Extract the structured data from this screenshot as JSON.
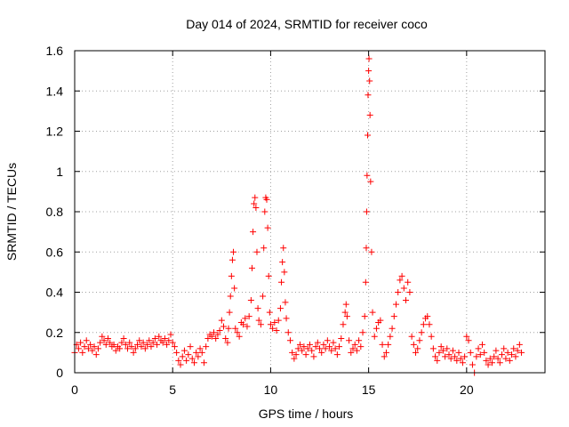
{
  "chart_data": {
    "type": "scatter",
    "title": "Day 014 of 2024, SRMTID for receiver coco",
    "xlabel": "GPS time / hours",
    "ylabel": "SRMTID / TECUs",
    "xlim": [
      0,
      24
    ],
    "ylim": [
      0,
      1.6
    ],
    "xticks": [
      0,
      5,
      10,
      15,
      20
    ],
    "yticks": [
      0,
      0.2,
      0.4,
      0.6,
      0.8,
      1,
      1.2,
      1.4,
      1.6
    ],
    "xtick_labels": [
      "0",
      "5",
      "10",
      "15",
      "20"
    ],
    "ytick_labels": [
      "0",
      "0.2",
      "0.4",
      "0.6",
      "0.8",
      "1",
      "1.2",
      "1.4",
      "1.6"
    ],
    "grid": true,
    "marker": "+",
    "color": "#ff0000",
    "series": [
      {
        "name": "SRMTID",
        "points": [
          [
            0.0,
            0.1
          ],
          [
            0.1,
            0.14
          ],
          [
            0.2,
            0.12
          ],
          [
            0.3,
            0.15
          ],
          [
            0.4,
            0.1
          ],
          [
            0.5,
            0.13
          ],
          [
            0.6,
            0.16
          ],
          [
            0.7,
            0.12
          ],
          [
            0.8,
            0.14
          ],
          [
            0.9,
            0.11
          ],
          [
            1.0,
            0.13
          ],
          [
            1.1,
            0.09
          ],
          [
            1.2,
            0.12
          ],
          [
            1.3,
            0.15
          ],
          [
            1.4,
            0.18
          ],
          [
            1.5,
            0.16
          ],
          [
            1.6,
            0.14
          ],
          [
            1.7,
            0.17
          ],
          [
            1.8,
            0.15
          ],
          [
            1.9,
            0.13
          ],
          [
            2.0,
            0.14
          ],
          [
            2.1,
            0.11
          ],
          [
            2.2,
            0.13
          ],
          [
            2.3,
            0.12
          ],
          [
            2.4,
            0.15
          ],
          [
            2.5,
            0.17
          ],
          [
            2.6,
            0.14
          ],
          [
            2.7,
            0.12
          ],
          [
            2.8,
            0.15
          ],
          [
            2.9,
            0.13
          ],
          [
            3.0,
            0.1
          ],
          [
            3.1,
            0.12
          ],
          [
            3.2,
            0.14
          ],
          [
            3.3,
            0.16
          ],
          [
            3.4,
            0.13
          ],
          [
            3.5,
            0.15
          ],
          [
            3.6,
            0.12
          ],
          [
            3.7,
            0.14
          ],
          [
            3.8,
            0.16
          ],
          [
            3.9,
            0.13
          ],
          [
            4.0,
            0.15
          ],
          [
            4.1,
            0.17
          ],
          [
            4.2,
            0.14
          ],
          [
            4.3,
            0.18
          ],
          [
            4.4,
            0.16
          ],
          [
            4.5,
            0.15
          ],
          [
            4.6,
            0.17
          ],
          [
            4.7,
            0.14
          ],
          [
            4.8,
            0.16
          ],
          [
            4.9,
            0.19
          ],
          [
            5.0,
            0.15
          ],
          [
            5.1,
            0.13
          ],
          [
            5.2,
            0.1
          ],
          [
            5.3,
            0.06
          ],
          [
            5.4,
            0.04
          ],
          [
            5.5,
            0.08
          ],
          [
            5.6,
            0.11
          ],
          [
            5.7,
            0.06
          ],
          [
            5.8,
            0.09
          ],
          [
            5.9,
            0.13
          ],
          [
            6.0,
            0.07
          ],
          [
            6.1,
            0.05
          ],
          [
            6.2,
            0.1
          ],
          [
            6.3,
            0.08
          ],
          [
            6.4,
            0.12
          ],
          [
            6.5,
            0.1
          ],
          [
            6.6,
            0.05
          ],
          [
            6.7,
            0.13
          ],
          [
            6.8,
            0.17
          ],
          [
            6.9,
            0.19
          ],
          [
            7.0,
            0.18
          ],
          [
            7.1,
            0.2
          ],
          [
            7.2,
            0.17
          ],
          [
            7.3,
            0.19
          ],
          [
            7.4,
            0.21
          ],
          [
            7.5,
            0.26
          ],
          [
            7.6,
            0.23
          ],
          [
            7.7,
            0.17
          ],
          [
            7.8,
            0.15
          ],
          [
            7.85,
            0.22
          ],
          [
            7.9,
            0.3
          ],
          [
            7.95,
            0.38
          ],
          [
            8.0,
            0.48
          ],
          [
            8.05,
            0.56
          ],
          [
            8.1,
            0.6
          ],
          [
            8.15,
            0.42
          ],
          [
            8.2,
            0.22
          ],
          [
            8.3,
            0.2
          ],
          [
            8.4,
            0.18
          ],
          [
            8.5,
            0.25
          ],
          [
            8.6,
            0.24
          ],
          [
            8.7,
            0.27
          ],
          [
            8.8,
            0.23
          ],
          [
            8.9,
            0.28
          ],
          [
            9.0,
            0.36
          ],
          [
            9.05,
            0.52
          ],
          [
            9.1,
            0.7
          ],
          [
            9.15,
            0.84
          ],
          [
            9.2,
            0.87
          ],
          [
            9.25,
            0.82
          ],
          [
            9.3,
            0.6
          ],
          [
            9.35,
            0.32
          ],
          [
            9.4,
            0.26
          ],
          [
            9.5,
            0.24
          ],
          [
            9.6,
            0.38
          ],
          [
            9.65,
            0.62
          ],
          [
            9.7,
            0.8
          ],
          [
            9.75,
            0.87
          ],
          [
            9.8,
            0.86
          ],
          [
            9.85,
            0.72
          ],
          [
            9.9,
            0.48
          ],
          [
            9.95,
            0.3
          ],
          [
            10.0,
            0.24
          ],
          [
            10.1,
            0.22
          ],
          [
            10.2,
            0.25
          ],
          [
            10.3,
            0.21
          ],
          [
            10.4,
            0.26
          ],
          [
            10.5,
            0.32
          ],
          [
            10.55,
            0.45
          ],
          [
            10.6,
            0.55
          ],
          [
            10.65,
            0.62
          ],
          [
            10.7,
            0.5
          ],
          [
            10.75,
            0.35
          ],
          [
            10.8,
            0.27
          ],
          [
            10.9,
            0.2
          ],
          [
            11.0,
            0.16
          ],
          [
            11.1,
            0.1
          ],
          [
            11.2,
            0.07
          ],
          [
            11.3,
            0.09
          ],
          [
            11.4,
            0.12
          ],
          [
            11.5,
            0.14
          ],
          [
            11.6,
            0.11
          ],
          [
            11.7,
            0.13
          ],
          [
            11.8,
            0.09
          ],
          [
            11.9,
            0.12
          ],
          [
            12.0,
            0.14
          ],
          [
            12.1,
            0.11
          ],
          [
            12.2,
            0.08
          ],
          [
            12.3,
            0.13
          ],
          [
            12.4,
            0.15
          ],
          [
            12.5,
            0.12
          ],
          [
            12.6,
            0.1
          ],
          [
            12.7,
            0.14
          ],
          [
            12.8,
            0.12
          ],
          [
            12.9,
            0.16
          ],
          [
            13.0,
            0.13
          ],
          [
            13.1,
            0.11
          ],
          [
            13.2,
            0.15
          ],
          [
            13.3,
            0.12
          ],
          [
            13.4,
            0.09
          ],
          [
            13.5,
            0.13
          ],
          [
            13.6,
            0.17
          ],
          [
            13.7,
            0.24
          ],
          [
            13.8,
            0.3
          ],
          [
            13.85,
            0.34
          ],
          [
            13.9,
            0.28
          ],
          [
            14.0,
            0.16
          ],
          [
            14.1,
            0.1
          ],
          [
            14.2,
            0.12
          ],
          [
            14.3,
            0.14
          ],
          [
            14.4,
            0.11
          ],
          [
            14.5,
            0.16
          ],
          [
            14.6,
            0.13
          ],
          [
            14.7,
            0.2
          ],
          [
            14.8,
            0.28
          ],
          [
            14.85,
            0.45
          ],
          [
            14.88,
            0.62
          ],
          [
            14.9,
            0.8
          ],
          [
            14.92,
            0.98
          ],
          [
            14.95,
            1.18
          ],
          [
            14.97,
            1.38
          ],
          [
            15.0,
            1.5
          ],
          [
            15.02,
            1.56
          ],
          [
            15.05,
            1.45
          ],
          [
            15.07,
            1.28
          ],
          [
            15.1,
            0.95
          ],
          [
            15.15,
            0.6
          ],
          [
            15.2,
            0.3
          ],
          [
            15.3,
            0.18
          ],
          [
            15.4,
            0.22
          ],
          [
            15.5,
            0.25
          ],
          [
            15.6,
            0.26
          ],
          [
            15.7,
            0.14
          ],
          [
            15.8,
            0.08
          ],
          [
            15.9,
            0.1
          ],
          [
            16.0,
            0.14
          ],
          [
            16.1,
            0.18
          ],
          [
            16.2,
            0.22
          ],
          [
            16.3,
            0.28
          ],
          [
            16.4,
            0.34
          ],
          [
            16.5,
            0.4
          ],
          [
            16.6,
            0.46
          ],
          [
            16.7,
            0.48
          ],
          [
            16.8,
            0.42
          ],
          [
            16.9,
            0.36
          ],
          [
            17.0,
            0.45
          ],
          [
            17.1,
            0.4
          ],
          [
            17.2,
            0.18
          ],
          [
            17.3,
            0.14
          ],
          [
            17.4,
            0.1
          ],
          [
            17.5,
            0.12
          ],
          [
            17.6,
            0.16
          ],
          [
            17.7,
            0.2
          ],
          [
            17.8,
            0.24
          ],
          [
            17.9,
            0.27
          ],
          [
            18.0,
            0.28
          ],
          [
            18.1,
            0.24
          ],
          [
            18.2,
            0.18
          ],
          [
            18.3,
            0.12
          ],
          [
            18.4,
            0.08
          ],
          [
            18.5,
            0.06
          ],
          [
            18.6,
            0.1
          ],
          [
            18.7,
            0.13
          ],
          [
            18.8,
            0.11
          ],
          [
            18.9,
            0.08
          ],
          [
            19.0,
            0.12
          ],
          [
            19.1,
            0.09
          ],
          [
            19.2,
            0.07
          ],
          [
            19.3,
            0.11
          ],
          [
            19.4,
            0.08
          ],
          [
            19.5,
            0.06
          ],
          [
            19.6,
            0.1
          ],
          [
            19.7,
            0.07
          ],
          [
            19.8,
            0.05
          ],
          [
            19.9,
            0.08
          ],
          [
            20.0,
            0.18
          ],
          [
            20.1,
            0.16
          ],
          [
            20.2,
            0.1
          ],
          [
            20.3,
            0.04
          ],
          [
            20.4,
            0.0
          ],
          [
            20.5,
            0.08
          ],
          [
            20.6,
            0.12
          ],
          [
            20.7,
            0.09
          ],
          [
            20.8,
            0.14
          ],
          [
            20.9,
            0.1
          ],
          [
            21.0,
            0.06
          ],
          [
            21.1,
            0.04
          ],
          [
            21.2,
            0.07
          ],
          [
            21.3,
            0.05
          ],
          [
            21.4,
            0.08
          ],
          [
            21.5,
            0.11
          ],
          [
            21.6,
            0.07
          ],
          [
            21.7,
            0.05
          ],
          [
            21.8,
            0.09
          ],
          [
            21.9,
            0.12
          ],
          [
            22.0,
            0.07
          ],
          [
            22.1,
            0.1
          ],
          [
            22.2,
            0.06
          ],
          [
            22.3,
            0.09
          ],
          [
            22.4,
            0.12
          ],
          [
            22.5,
            0.08
          ],
          [
            22.6,
            0.11
          ],
          [
            22.7,
            0.14
          ],
          [
            22.8,
            0.1
          ]
        ]
      }
    ]
  }
}
